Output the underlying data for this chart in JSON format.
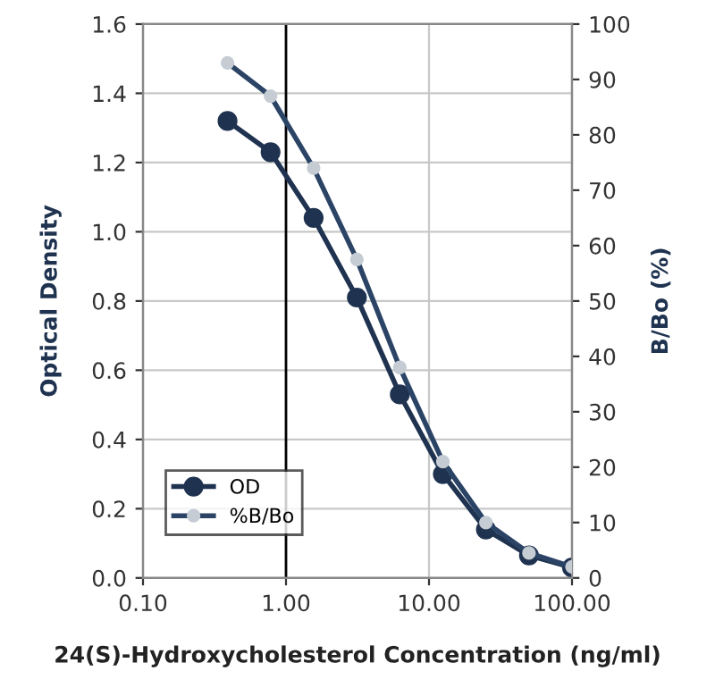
{
  "chart_data": {
    "type": "line",
    "xlabel": "24(S)-Hydroxycholesterol Concentration (ng/ml)",
    "ylabel": "Optical Density",
    "y2label": "B/Bo (%)",
    "x": [
      0.39,
      0.78,
      1.56,
      3.13,
      6.25,
      12.5,
      25,
      50,
      100
    ],
    "series": [
      {
        "name": "OD",
        "color": "#1f3350",
        "values": [
          1.32,
          1.23,
          1.04,
          0.81,
          0.53,
          0.3,
          0.14,
          0.065,
          0.03
        ]
      },
      {
        "name": "%B/Bo",
        "color": "#2b4466",
        "axis": "y2",
        "values": [
          93,
          87,
          74,
          57.5,
          38,
          21,
          10,
          4.5,
          2
        ]
      }
    ],
    "log": "x",
    "xlim": [
      0.1,
      100
    ],
    "xticks": [
      {
        "value": 0.1,
        "label": "0.10"
      },
      {
        "value": 1,
        "label": "1.00"
      },
      {
        "value": 10,
        "label": "10.00"
      },
      {
        "value": 100,
        "label": "100.00"
      }
    ],
    "ylim": [
      0,
      1.6
    ],
    "yticks": [
      {
        "value": 0,
        "label": "0.0"
      },
      {
        "value": 0.2,
        "label": "0.2"
      },
      {
        "value": 0.4,
        "label": "0.4"
      },
      {
        "value": 0.6,
        "label": "0.6"
      },
      {
        "value": 0.8,
        "label": "0.8"
      },
      {
        "value": 1.0,
        "label": "1.0"
      },
      {
        "value": 1.2,
        "label": "1.2"
      },
      {
        "value": 1.4,
        "label": "1.4"
      },
      {
        "value": 1.6,
        "label": "1.6"
      }
    ],
    "y2lim": [
      0,
      100
    ],
    "y2ticks": [
      0,
      10,
      20,
      30,
      40,
      50,
      60,
      70,
      80,
      90,
      100
    ],
    "ref_lines": [
      {
        "axis": "x",
        "value": 1,
        "color": "#000000"
      }
    ],
    "grid": true,
    "legend": "bottom left",
    "marker": "circle",
    "line_style": "solid"
  }
}
